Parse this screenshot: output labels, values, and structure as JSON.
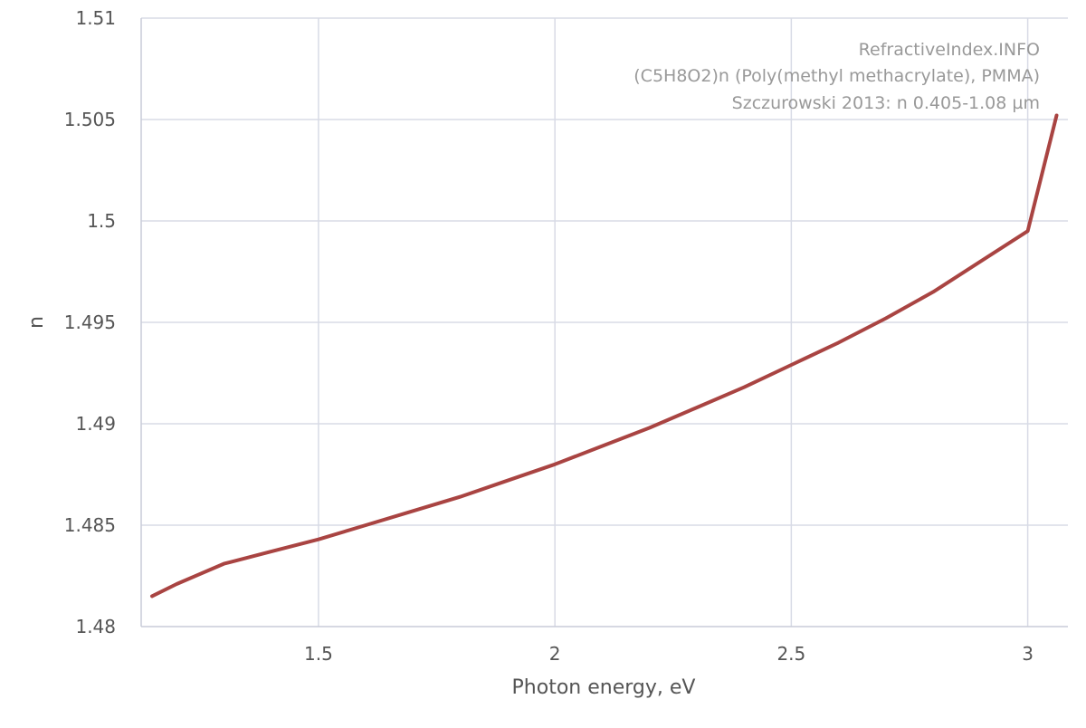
{
  "chart_data": {
    "type": "line",
    "credits": [
      "RefractiveIndex.INFO",
      "(C5H8O2)n (Poly(methyl methacrylate), PMMA)",
      "Szczurowski 2013: n 0.405-1.08 µm"
    ],
    "xlabel": "Photon energy, eV",
    "ylabel": "n",
    "xlim": [
      1.125,
      3.085
    ],
    "ylim": [
      1.48,
      1.51
    ],
    "x_ticks": [
      1.5,
      2,
      2.5,
      3
    ],
    "x_tick_labels": [
      "1.5",
      "2",
      "2.5",
      "3"
    ],
    "y_ticks": [
      1.48,
      1.485,
      1.49,
      1.495,
      1.5,
      1.505,
      1.51
    ],
    "y_tick_labels": [
      "1.48",
      "1.485",
      "1.49",
      "1.495",
      "1.5",
      "1.505",
      "1.51"
    ],
    "grid": true,
    "legend": "none",
    "series": [
      {
        "color": "#a94442",
        "x": [
          1.148,
          1.2,
          1.3,
          1.4,
          1.5,
          1.6,
          1.7,
          1.8,
          1.9,
          2.0,
          2.1,
          2.2,
          2.3,
          2.4,
          2.5,
          2.6,
          2.7,
          2.8,
          2.9,
          3.0,
          3.061
        ],
        "y": [
          1.4815,
          1.4821,
          1.4831,
          1.4837,
          1.4843,
          1.485,
          1.4857,
          1.4864,
          1.4872,
          1.488,
          1.4889,
          1.4898,
          1.4908,
          1.4918,
          1.4929,
          1.494,
          1.4952,
          1.4965,
          1.498,
          1.4995,
          1.5052
        ]
      }
    ]
  }
}
